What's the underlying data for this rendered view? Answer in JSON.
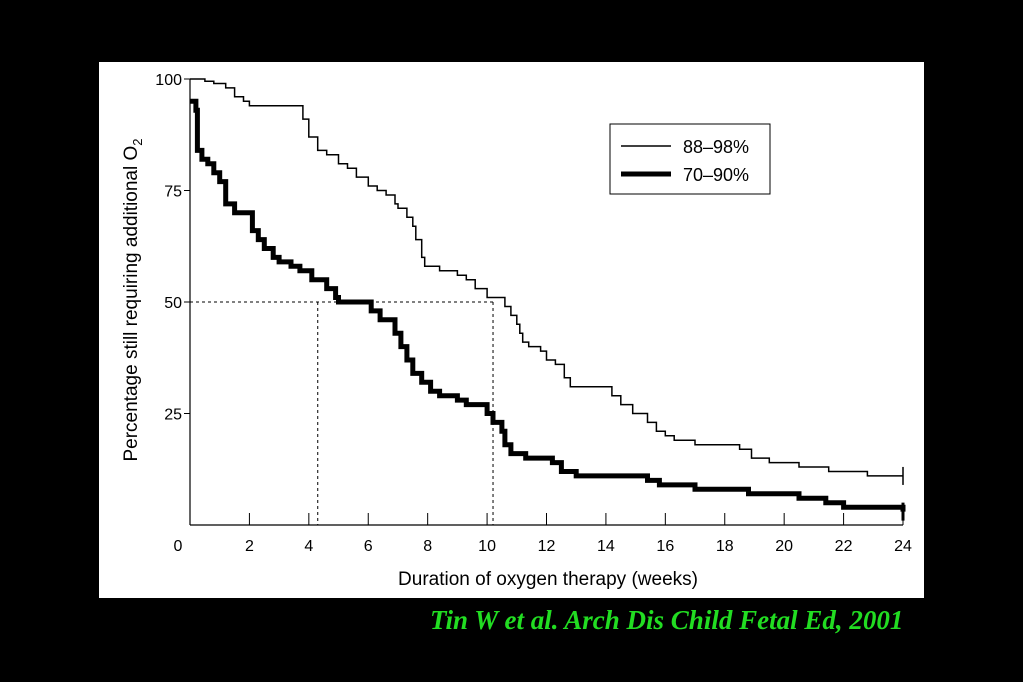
{
  "caption": "Tin W et al. Arch Dis Child Fetal Ed, 2001",
  "chart_data": {
    "type": "line",
    "title": "",
    "xlabel": "Duration of oxygen therapy (weeks)",
    "ylabel_main": "Percentage still requiring additional O",
    "ylabel_sub": "2",
    "xlim": [
      0,
      24
    ],
    "ylim": [
      0,
      100
    ],
    "x_ticks": [
      "0",
      "2",
      "4",
      "6",
      "8",
      "10",
      "12",
      "14",
      "16",
      "18",
      "20",
      "22",
      "24"
    ],
    "y_ticks": [
      "25",
      "50",
      "75",
      "100"
    ],
    "grid": false,
    "legend_position": "top-right",
    "reference_lines": {
      "y": 50,
      "x_medians": [
        4.3,
        10.2
      ]
    },
    "series": [
      {
        "name": "88–98%",
        "color": "#000000",
        "steps": [
          [
            0,
            100
          ],
          [
            0.5,
            99.5
          ],
          [
            0.8,
            99
          ],
          [
            1.2,
            98
          ],
          [
            1.5,
            96
          ],
          [
            1.8,
            95
          ],
          [
            2,
            94
          ],
          [
            3.5,
            94
          ],
          [
            3.8,
            91
          ],
          [
            4,
            87
          ],
          [
            4.3,
            84
          ],
          [
            4.6,
            83
          ],
          [
            5,
            81
          ],
          [
            5.3,
            80
          ],
          [
            5.6,
            78
          ],
          [
            6,
            76
          ],
          [
            6.3,
            75
          ],
          [
            6.6,
            74
          ],
          [
            6.9,
            72
          ],
          [
            7,
            71
          ],
          [
            7.3,
            69
          ],
          [
            7.5,
            67
          ],
          [
            7.6,
            64
          ],
          [
            7.8,
            60
          ],
          [
            7.9,
            58
          ],
          [
            8.4,
            57
          ],
          [
            8.6,
            57
          ],
          [
            9,
            56
          ],
          [
            9.3,
            55
          ],
          [
            9.6,
            53
          ],
          [
            10,
            51
          ],
          [
            10.3,
            51
          ],
          [
            10.6,
            49
          ],
          [
            10.8,
            47
          ],
          [
            11,
            45
          ],
          [
            11.1,
            43
          ],
          [
            11.2,
            41
          ],
          [
            11.4,
            40
          ],
          [
            11.8,
            39
          ],
          [
            12,
            37
          ],
          [
            12.3,
            36
          ],
          [
            12.6,
            33
          ],
          [
            12.8,
            31
          ],
          [
            13,
            31
          ],
          [
            13.8,
            31
          ],
          [
            14.2,
            29
          ],
          [
            14.5,
            27
          ],
          [
            14.9,
            25
          ],
          [
            15.4,
            23
          ],
          [
            15.7,
            21
          ],
          [
            16,
            20
          ],
          [
            16.3,
            19
          ],
          [
            17,
            18
          ],
          [
            18.5,
            17
          ],
          [
            18.9,
            15
          ],
          [
            19.5,
            14
          ],
          [
            20.5,
            13
          ],
          [
            21.5,
            12
          ],
          [
            22.8,
            11
          ],
          [
            24,
            11
          ]
        ]
      },
      {
        "name": "70–90%",
        "color": "#000000",
        "steps": [
          [
            0,
            95
          ],
          [
            0.2,
            93
          ],
          [
            0.25,
            84
          ],
          [
            0.4,
            82
          ],
          [
            0.6,
            81
          ],
          [
            0.8,
            79
          ],
          [
            1,
            77
          ],
          [
            1.2,
            72
          ],
          [
            1.5,
            70
          ],
          [
            2,
            70
          ],
          [
            2.1,
            66
          ],
          [
            2.3,
            64
          ],
          [
            2.5,
            62
          ],
          [
            2.8,
            60
          ],
          [
            3,
            59
          ],
          [
            3.4,
            58
          ],
          [
            3.7,
            57
          ],
          [
            4.1,
            55
          ],
          [
            4.6,
            53
          ],
          [
            4.9,
            51
          ],
          [
            5,
            50
          ],
          [
            5.9,
            50
          ],
          [
            6.1,
            48
          ],
          [
            6.4,
            46
          ],
          [
            6.9,
            43
          ],
          [
            7.1,
            40
          ],
          [
            7.3,
            37
          ],
          [
            7.5,
            34
          ],
          [
            7.8,
            32
          ],
          [
            8.1,
            30
          ],
          [
            8.4,
            29
          ],
          [
            9,
            28
          ],
          [
            9.3,
            27
          ],
          [
            9.5,
            27
          ],
          [
            10,
            25
          ],
          [
            10.2,
            23
          ],
          [
            10.5,
            21
          ],
          [
            10.6,
            18
          ],
          [
            10.8,
            16
          ],
          [
            11.3,
            15
          ],
          [
            12.2,
            14
          ],
          [
            12.5,
            12
          ],
          [
            13,
            11
          ],
          [
            15.4,
            10
          ],
          [
            15.8,
            9
          ],
          [
            17,
            8
          ],
          [
            18.8,
            7
          ],
          [
            20.5,
            6
          ],
          [
            21.4,
            5
          ],
          [
            22,
            4
          ],
          [
            23.8,
            4
          ],
          [
            24,
            3
          ]
        ]
      }
    ]
  }
}
